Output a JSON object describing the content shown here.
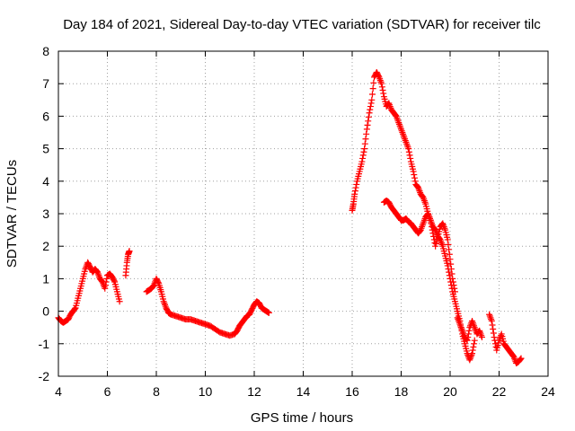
{
  "chart_data": {
    "type": "scatter",
    "title": "Day 184 of 2021, Sidereal Day-to-day VTEC variation (SDTVAR) for receiver tilc",
    "xlabel": "GPS time / hours",
    "ylabel": "SDTVAR / TECUs",
    "xlim": [
      4,
      24
    ],
    "ylim": [
      -2,
      8
    ],
    "xticks": [
      "4",
      "6",
      "8",
      "10",
      "12",
      "14",
      "16",
      "18",
      "20",
      "22",
      "24"
    ],
    "yticks": [
      "-2",
      "-1",
      "0",
      "1",
      "2",
      "3",
      "4",
      "5",
      "6",
      "7",
      "8"
    ],
    "grid": true,
    "marker": "plus",
    "color": "#ff0000",
    "series": [
      {
        "name": "segment-1",
        "x": [
          4.0,
          4.1,
          4.2,
          4.3,
          4.4,
          4.5,
          4.6,
          4.7,
          4.8,
          4.9,
          5.0,
          5.1,
          5.2,
          5.3,
          5.4,
          5.5,
          5.6,
          5.7,
          5.8,
          5.9,
          6.0,
          6.1,
          6.2,
          6.3,
          6.4,
          6.5
        ],
        "y": [
          -0.2,
          -0.3,
          -0.35,
          -0.3,
          -0.25,
          -0.1,
          0.0,
          0.1,
          0.4,
          0.7,
          1.0,
          1.3,
          1.5,
          1.35,
          1.2,
          1.3,
          1.2,
          1.0,
          0.9,
          0.7,
          1.1,
          1.15,
          1.05,
          0.9,
          0.6,
          0.3
        ]
      },
      {
        "name": "segment-2",
        "x": [
          6.75,
          6.8,
          6.85,
          6.9
        ],
        "y": [
          1.1,
          1.5,
          1.75,
          1.85
        ]
      },
      {
        "name": "segment-3",
        "x": [
          7.6,
          7.7,
          7.8,
          7.9,
          8.0,
          8.1,
          8.2,
          8.3,
          8.4,
          8.5,
          8.6,
          8.8,
          9.0,
          9.2,
          9.4,
          9.6,
          9.8,
          10.0,
          10.2,
          10.4,
          10.6,
          10.8,
          11.0,
          11.2,
          11.3,
          11.4,
          11.5,
          11.6,
          11.7,
          11.8,
          11.9,
          12.0,
          12.1,
          12.2,
          12.3,
          12.4,
          12.5,
          12.6
        ],
        "y": [
          0.6,
          0.65,
          0.7,
          0.8,
          1.0,
          0.85,
          0.6,
          0.3,
          0.1,
          -0.05,
          -0.1,
          -0.15,
          -0.2,
          -0.25,
          -0.25,
          -0.3,
          -0.35,
          -0.4,
          -0.45,
          -0.55,
          -0.65,
          -0.7,
          -0.75,
          -0.7,
          -0.6,
          -0.45,
          -0.35,
          -0.25,
          -0.15,
          -0.1,
          0.05,
          0.2,
          0.3,
          0.25,
          0.1,
          0.05,
          0.0,
          -0.05
        ]
      },
      {
        "name": "segment-4",
        "x": [
          16.0,
          16.05,
          16.1,
          16.2,
          16.3,
          16.4,
          16.5,
          16.6,
          16.7,
          16.8,
          16.9,
          17.0,
          17.1,
          17.2,
          17.3,
          17.4,
          17.5,
          17.6,
          17.7,
          17.8,
          17.9,
          18.0,
          18.1,
          18.2,
          18.3,
          18.4,
          18.5,
          18.6,
          18.7,
          18.8,
          18.9,
          19.0,
          19.1,
          19.2,
          19.3,
          19.4,
          19.5,
          19.6,
          19.7,
          19.8,
          19.9,
          20.0,
          20.1,
          20.2,
          20.3,
          20.4,
          20.5,
          20.6,
          20.7,
          20.8,
          20.9,
          21.0
        ],
        "y": [
          3.1,
          3.3,
          3.6,
          4.0,
          4.3,
          4.6,
          5.0,
          5.6,
          6.1,
          6.5,
          7.2,
          7.35,
          7.2,
          7.0,
          6.6,
          6.3,
          6.4,
          6.2,
          6.1,
          6.0,
          5.8,
          5.6,
          5.4,
          5.2,
          5.0,
          4.6,
          4.3,
          3.9,
          3.8,
          3.6,
          3.5,
          3.3,
          3.0,
          2.8,
          2.6,
          2.5,
          2.3,
          2.2,
          2.0,
          1.7,
          1.4,
          1.0,
          0.6,
          0.3,
          0.0,
          -0.3,
          -0.7,
          -1.0,
          -1.3,
          -1.5,
          -1.3,
          -0.9
        ]
      },
      {
        "name": "segment-5",
        "x": [
          17.3,
          17.4,
          17.5,
          17.6,
          17.7,
          17.8,
          17.9,
          18.0,
          18.1,
          18.2,
          18.3,
          18.4,
          18.5,
          18.6,
          18.7,
          18.8,
          18.9,
          19.0,
          19.1,
          19.2,
          19.3,
          19.4,
          19.5,
          19.6,
          19.7,
          19.8,
          19.9,
          20.0,
          20.1,
          20.2
        ],
        "y": [
          3.35,
          3.4,
          3.35,
          3.2,
          3.1,
          3.0,
          2.9,
          2.8,
          2.8,
          2.85,
          2.75,
          2.7,
          2.6,
          2.5,
          2.4,
          2.5,
          2.7,
          2.9,
          3.0,
          2.8,
          2.4,
          2.0,
          2.3,
          2.6,
          2.7,
          2.5,
          2.2,
          1.6,
          1.0,
          0.6
        ]
      },
      {
        "name": "segment-6",
        "x": [
          20.3,
          20.4,
          20.5,
          20.6,
          20.7,
          20.8,
          20.9,
          21.0,
          21.1,
          21.2,
          21.3
        ],
        "y": [
          -0.2,
          -0.4,
          -0.6,
          -0.8,
          -0.9,
          -0.5,
          -0.3,
          -0.5,
          -0.7,
          -0.6,
          -0.8
        ]
      },
      {
        "name": "segment-7",
        "x": [
          21.6,
          21.7,
          21.8,
          21.9,
          22.0,
          22.1,
          22.2,
          22.3,
          22.4,
          22.5,
          22.6,
          22.7,
          22.8,
          22.9
        ],
        "y": [
          -0.1,
          -0.3,
          -0.8,
          -1.2,
          -0.9,
          -0.7,
          -1.0,
          -1.1,
          -1.2,
          -1.3,
          -1.4,
          -1.6,
          -1.55,
          -1.45
        ]
      }
    ]
  }
}
